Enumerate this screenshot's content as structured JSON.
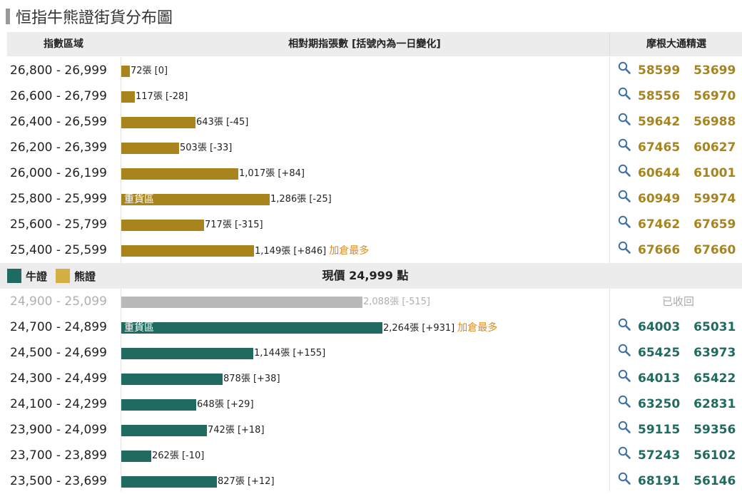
{
  "title": "恒指牛熊證街貨分布圖",
  "header": {
    "range": "指數區域",
    "desc": "相對期指張數 [括號內為一日變化]",
    "pick": "摩根大通精選"
  },
  "legend": {
    "bull": "牛證",
    "bear": "熊證"
  },
  "current_price": "現價 24,999 點",
  "recalled_label": "已收回",
  "colors": {
    "bear": "#a8841c",
    "bull": "#1f6b60",
    "recalled": "#b9b9b9",
    "note": "#e08a1e"
  },
  "bear_rows": [
    {
      "range": "26,800 - 26,999",
      "contracts": 72,
      "count": "72張 [0]",
      "codes": [
        "58599",
        "53699"
      ]
    },
    {
      "range": "26,600 - 26,799",
      "contracts": 117,
      "count": "117張 [-28]",
      "codes": [
        "58556",
        "56970"
      ]
    },
    {
      "range": "26,400 - 26,599",
      "contracts": 643,
      "count": "643張 [-45]",
      "codes": [
        "59642",
        "56988"
      ]
    },
    {
      "range": "26,200 - 26,399",
      "contracts": 503,
      "count": "503張 [-33]",
      "codes": [
        "67465",
        "60627"
      ]
    },
    {
      "range": "26,000 - 26,199",
      "contracts": 1017,
      "count": "1,017張 [+84]",
      "codes": [
        "60644",
        "61001"
      ]
    },
    {
      "range": "25,800 - 25,999",
      "contracts": 1286,
      "count": "1,286張 [-25]",
      "tag": "重貨區",
      "codes": [
        "60949",
        "59974"
      ]
    },
    {
      "range": "25,600 - 25,799",
      "contracts": 717,
      "count": "717張 [-315]",
      "codes": [
        "67462",
        "67659"
      ]
    },
    {
      "range": "25,400 - 25,599",
      "contracts": 1149,
      "count": "1,149張 [+846]",
      "note": "加倉最多",
      "codes": [
        "67666",
        "67660"
      ]
    }
  ],
  "bull_rows": [
    {
      "range": "24,900 - 25,099",
      "contracts": 2088,
      "count": "2,088張 [-515]",
      "recalled": true
    },
    {
      "range": "24,700 - 24,899",
      "contracts": 2264,
      "count": "2,264張 [+931]",
      "tag": "重貨區",
      "note": "加倉最多",
      "codes": [
        "64003",
        "65031"
      ]
    },
    {
      "range": "24,500 - 24,699",
      "contracts": 1144,
      "count": "1,144張 [+155]",
      "codes": [
        "65425",
        "63973"
      ]
    },
    {
      "range": "24,300 - 24,499",
      "contracts": 878,
      "count": "878張 [+38]",
      "codes": [
        "64013",
        "65422"
      ]
    },
    {
      "range": "24,100 - 24,299",
      "contracts": 648,
      "count": "648張 [+29]",
      "codes": [
        "63250",
        "62831"
      ]
    },
    {
      "range": "23,900 - 24,099",
      "contracts": 742,
      "count": "742張 [+18]",
      "codes": [
        "59115",
        "59356"
      ]
    },
    {
      "range": "23,700 - 23,899",
      "contracts": 262,
      "count": "262張 [-10]",
      "codes": [
        "57243",
        "56102"
      ]
    },
    {
      "range": "23,500 - 23,699",
      "contracts": 827,
      "count": "827張 [+12]",
      "codes": [
        "68191",
        "56146"
      ]
    }
  ]
}
